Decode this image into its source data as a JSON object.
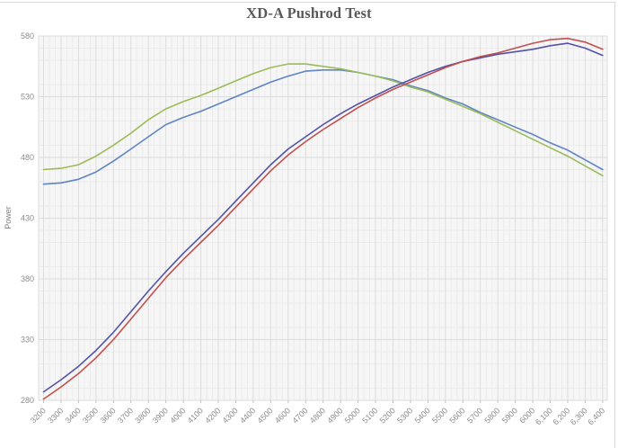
{
  "panel": {
    "background": "#ffffff",
    "border_color": "#d9d9d9"
  },
  "chart_data": {
    "type": "line",
    "title": "XD-A Pushrod Test",
    "xlabel": "",
    "ylabel": "Power",
    "xlim": [
      3200,
      6400
    ],
    "ylim": [
      280,
      580
    ],
    "y_ticks": [
      280,
      330,
      380,
      430,
      480,
      530,
      580
    ],
    "x": [
      3200,
      3300,
      3400,
      3500,
      3600,
      3700,
      3800,
      3900,
      4000,
      4100,
      4200,
      4300,
      4400,
      4500,
      4600,
      4700,
      4800,
      4900,
      5000,
      5100,
      5200,
      5300,
      5400,
      5500,
      5600,
      5700,
      5800,
      5900,
      6000,
      6100,
      6200,
      6300,
      6400
    ],
    "x_tick_labels": [
      "3200",
      "3300",
      "3400",
      "3500",
      "3600",
      "3700",
      "3800",
      "3900",
      "4000",
      "4100",
      "4200",
      "4300",
      "4400",
      "4500",
      "4600",
      "4700",
      "4800",
      "4900",
      "5000",
      "5100",
      "5200",
      "5300",
      "5400",
      "5500",
      "5600",
      "5700",
      "5800",
      "5900",
      "6000",
      "6,100",
      "6,200",
      "6,300",
      "6,400"
    ],
    "grid": {
      "major": true,
      "minor": true
    },
    "legend": "none",
    "colors": {
      "plot_bg": "#f6f6f6",
      "grid_minor": "#ebebeb",
      "grid_major": "#dcdcdc",
      "axis_tick": "#c0c0c0",
      "tick_label": "#8c8c8c",
      "axis_title": "#7f7f7f",
      "title": "#595959"
    },
    "series": [
      {
        "name": "blue-line",
        "color": "#5f85c4",
        "values": [
          458,
          459,
          462,
          468,
          477,
          487,
          497,
          507,
          513,
          518,
          524,
          530,
          536,
          542,
          547,
          551,
          552,
          552,
          550,
          547,
          544,
          539,
          535,
          529,
          524,
          517,
          511,
          505,
          499,
          492,
          486,
          478,
          470
        ]
      },
      {
        "name": "green-line",
        "color": "#9bbb59",
        "values": [
          470,
          471,
          474,
          481,
          490,
          500,
          511,
          520,
          526,
          531,
          537,
          543,
          549,
          554,
          557,
          557,
          555,
          553,
          550,
          547,
          543,
          538,
          534,
          528,
          522,
          516,
          509,
          502,
          495,
          488,
          481,
          473,
          465
        ]
      },
      {
        "name": "navy-line",
        "color": "#5253a8",
        "values": [
          287,
          297,
          308,
          321,
          336,
          353,
          370,
          386,
          401,
          415,
          429,
          444,
          459,
          474,
          487,
          497,
          507,
          516,
          524,
          531,
          538,
          544,
          550,
          555,
          559,
          562,
          565,
          567,
          569,
          572,
          574,
          570,
          564
        ]
      },
      {
        "name": "red-line",
        "color": "#c0504d",
        "values": [
          281,
          291,
          302,
          315,
          330,
          347,
          364,
          381,
          396,
          410,
          424,
          439,
          454,
          469,
          482,
          493,
          503,
          512,
          521,
          529,
          536,
          542,
          548,
          554,
          559,
          563,
          566,
          570,
          574,
          577,
          578,
          575,
          569
        ]
      }
    ]
  }
}
